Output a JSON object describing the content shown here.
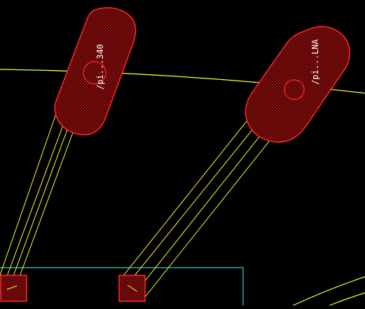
{
  "canvas": {
    "background": "#000000"
  },
  "colors": {
    "pad_fill": "#a01818",
    "pad_stroke": "#ff2a2a",
    "trace": "#ffff33",
    "outline": "#33cccc",
    "label": "#ffffff"
  },
  "pads": [
    {
      "id": "pad-left",
      "label": "/pi...340"
    },
    {
      "id": "pad-right",
      "label": "/pi...LNA"
    }
  ],
  "icons": {
    "pattern": "crosshatch-fill"
  }
}
